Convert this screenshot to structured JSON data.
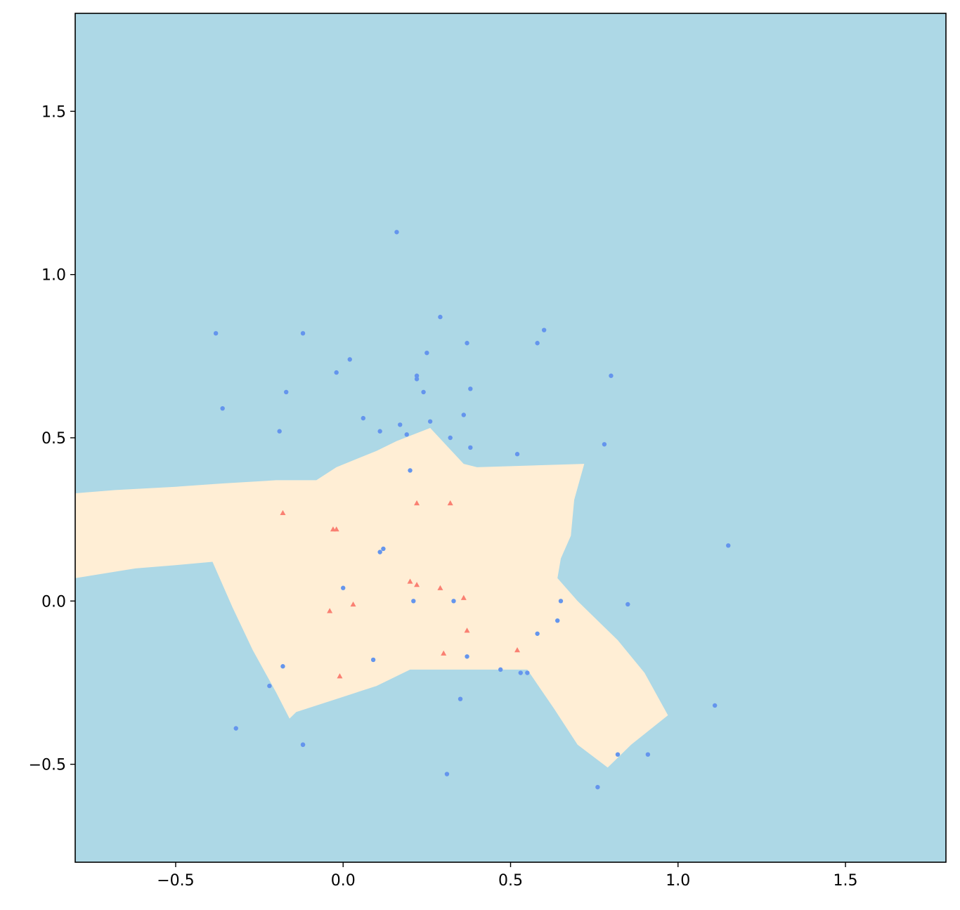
{
  "chart_data": {
    "type": "scatter",
    "title": "",
    "xlabel": "",
    "ylabel": "",
    "xlim": [
      -0.8,
      1.8
    ],
    "ylim": [
      -0.8,
      1.8
    ],
    "grid": false,
    "xticks": [
      {
        "value": -0.5,
        "label": "−0.5"
      },
      {
        "value": 0.0,
        "label": "0.0"
      },
      {
        "value": 0.5,
        "label": "0.5"
      },
      {
        "value": 1.0,
        "label": "1.0"
      },
      {
        "value": 1.5,
        "label": "1.5"
      }
    ],
    "yticks": [
      {
        "value": -0.5,
        "label": "−0.5"
      },
      {
        "value": 0.0,
        "label": "0.0"
      },
      {
        "value": 0.5,
        "label": "0.5"
      },
      {
        "value": 1.0,
        "label": "1.0"
      },
      {
        "value": 1.5,
        "label": "1.5"
      }
    ],
    "colors": {
      "background_region": "#add8e6",
      "decision_region": "#ffeed5",
      "class_0_points": "#6495ed",
      "class_1_points": "#fa8072",
      "axes": "#000000"
    },
    "decision_region": {
      "class": 1,
      "polygon": [
        [
          -0.8,
          0.33
        ],
        [
          -0.68,
          0.34
        ],
        [
          -0.5,
          0.35
        ],
        [
          -0.36,
          0.36
        ],
        [
          -0.2,
          0.37
        ],
        [
          -0.08,
          0.37
        ],
        [
          -0.02,
          0.41
        ],
        [
          0.1,
          0.46
        ],
        [
          0.16,
          0.49
        ],
        [
          0.26,
          0.53
        ],
        [
          0.36,
          0.42
        ],
        [
          0.4,
          0.41
        ],
        [
          0.72,
          0.42
        ],
        [
          0.69,
          0.31
        ],
        [
          0.68,
          0.2
        ],
        [
          0.65,
          0.13
        ],
        [
          0.64,
          0.07
        ],
        [
          0.7,
          0.0
        ],
        [
          0.82,
          -0.12
        ],
        [
          0.9,
          -0.22
        ],
        [
          0.97,
          -0.35
        ],
        [
          0.86,
          -0.44
        ],
        [
          0.79,
          -0.51
        ],
        [
          0.7,
          -0.44
        ],
        [
          0.63,
          -0.33
        ],
        [
          0.55,
          -0.21
        ],
        [
          0.42,
          -0.21
        ],
        [
          0.2,
          -0.21
        ],
        [
          0.1,
          -0.26
        ],
        [
          -0.02,
          -0.3
        ],
        [
          -0.14,
          -0.34
        ],
        [
          -0.16,
          -0.36
        ],
        [
          -0.2,
          -0.28
        ],
        [
          -0.27,
          -0.15
        ],
        [
          -0.33,
          -0.02
        ],
        [
          -0.39,
          0.12
        ],
        [
          -0.5,
          0.11
        ],
        [
          -0.62,
          0.1
        ],
        [
          -0.8,
          0.07
        ]
      ]
    },
    "series": [
      {
        "class": 0,
        "marker": "circle",
        "points": [
          [
            0.16,
            1.13
          ],
          [
            0.29,
            0.87
          ],
          [
            0.6,
            0.83
          ],
          [
            -0.12,
            0.82
          ],
          [
            -0.38,
            0.82
          ],
          [
            0.37,
            0.79
          ],
          [
            0.58,
            0.79
          ],
          [
            0.25,
            0.76
          ],
          [
            0.02,
            0.74
          ],
          [
            -0.02,
            0.7
          ],
          [
            0.22,
            0.69
          ],
          [
            0.8,
            0.69
          ],
          [
            0.22,
            0.68
          ],
          [
            0.38,
            0.65
          ],
          [
            -0.17,
            0.64
          ],
          [
            0.24,
            0.64
          ],
          [
            -0.36,
            0.59
          ],
          [
            0.36,
            0.57
          ],
          [
            0.06,
            0.56
          ],
          [
            0.26,
            0.55
          ],
          [
            0.17,
            0.54
          ],
          [
            -0.19,
            0.52
          ],
          [
            0.11,
            0.52
          ],
          [
            0.19,
            0.51
          ],
          [
            0.32,
            0.5
          ],
          [
            0.78,
            0.48
          ],
          [
            0.38,
            0.47
          ],
          [
            0.52,
            0.45
          ],
          [
            0.2,
            0.4
          ],
          [
            0.12,
            0.16
          ],
          [
            0.11,
            0.15
          ],
          [
            0.0,
            0.04
          ],
          [
            0.21,
            0.0
          ],
          [
            0.33,
            0.0
          ],
          [
            0.65,
            0.0
          ],
          [
            0.85,
            -0.01
          ],
          [
            0.64,
            -0.06
          ],
          [
            0.58,
            -0.1
          ],
          [
            0.37,
            -0.17
          ],
          [
            0.09,
            -0.18
          ],
          [
            -0.18,
            -0.2
          ],
          [
            0.47,
            -0.21
          ],
          [
            0.53,
            -0.22
          ],
          [
            0.55,
            -0.22
          ],
          [
            -0.22,
            -0.26
          ],
          [
            0.35,
            -0.3
          ],
          [
            1.11,
            -0.32
          ],
          [
            -0.32,
            -0.39
          ],
          [
            -0.12,
            -0.44
          ],
          [
            -0.12,
            -0.44
          ],
          [
            0.82,
            -0.47
          ],
          [
            0.91,
            -0.47
          ],
          [
            0.31,
            -0.53
          ],
          [
            0.76,
            -0.57
          ],
          [
            1.15,
            0.17
          ]
        ]
      },
      {
        "class": 1,
        "marker": "triangle",
        "points": [
          [
            0.22,
            0.3
          ],
          [
            0.32,
            0.3
          ],
          [
            -0.18,
            0.27
          ],
          [
            -0.03,
            0.22
          ],
          [
            -0.02,
            0.22
          ],
          [
            0.2,
            0.06
          ],
          [
            0.22,
            0.05
          ],
          [
            0.29,
            0.04
          ],
          [
            0.36,
            0.01
          ],
          [
            0.03,
            -0.01
          ],
          [
            -0.04,
            -0.03
          ],
          [
            0.37,
            -0.09
          ],
          [
            0.52,
            -0.15
          ],
          [
            0.3,
            -0.16
          ],
          [
            -0.01,
            -0.23
          ]
        ]
      }
    ]
  }
}
